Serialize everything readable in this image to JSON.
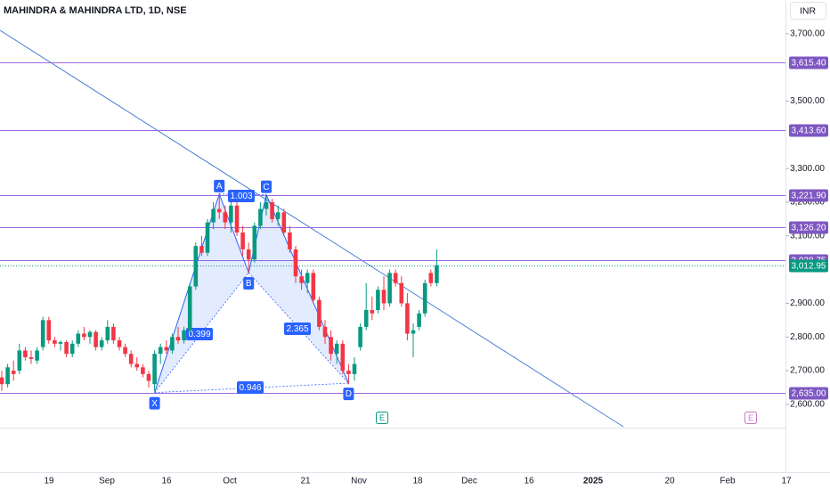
{
  "chart_data": {
    "type": "candlestick",
    "title": "MAHINDRA & MAHINDRA LTD, 1D, NSE",
    "currency": "INR",
    "open": [
      2680,
      2660,
      2700,
      2700,
      2760,
      2740,
      2730,
      2770,
      2850,
      2790,
      2780,
      2785,
      2750,
      2780,
      2810,
      2800,
      2815,
      2770,
      2790,
      2830,
      2790,
      2770,
      2750,
      2720,
      2710,
      2690,
      2660,
      2750,
      2770,
      2760,
      2800,
      2790,
      2820,
      2950,
      3070,
      3050,
      3140,
      3180,
      3170,
      3140,
      3190,
      3110,
      3060,
      3030,
      3130,
      3180,
      3200,
      3150,
      3170,
      3110,
      3060,
      2980,
      2960,
      2990,
      2910,
      2830,
      2800,
      2750,
      2780,
      2700,
      2690,
      2770,
      2830,
      2880,
      2880,
      2940,
      2900,
      2990,
      2960,
      2900,
      2810,
      2830,
      2870,
      2990,
      2960
    ],
    "high": [
      2700,
      2720,
      2730,
      2780,
      2770,
      2760,
      2770,
      2860,
      2860,
      2800,
      2790,
      2790,
      2790,
      2820,
      2830,
      2820,
      2820,
      2800,
      2850,
      2840,
      2800,
      2780,
      2760,
      2740,
      2720,
      2700,
      2760,
      2780,
      2790,
      2810,
      2830,
      2830,
      2960,
      3080,
      3100,
      3150,
      3200,
      3225,
      3190,
      3200,
      3200,
      3130,
      3080,
      3140,
      3200,
      3220,
      3210,
      3190,
      3180,
      3130,
      3070,
      3000,
      3000,
      3000,
      2920,
      2850,
      2820,
      2790,
      2790,
      2720,
      2740,
      2840,
      2960,
      2920,
      2950,
      2980,
      3000,
      3000,
      2980,
      2930,
      2840,
      2880,
      2970,
      3000,
      3060
    ],
    "low": [
      2640,
      2650,
      2670,
      2690,
      2730,
      2720,
      2720,
      2760,
      2780,
      2770,
      2760,
      2740,
      2740,
      2770,
      2790,
      2780,
      2760,
      2760,
      2780,
      2780,
      2760,
      2740,
      2710,
      2700,
      2680,
      2650,
      2640,
      2720,
      2750,
      2750,
      2780,
      2780,
      2810,
      2940,
      3040,
      3040,
      3120,
      3150,
      3120,
      3110,
      3100,
      3040,
      2990,
      3020,
      3120,
      3160,
      3140,
      3130,
      3100,
      3050,
      2960,
      2940,
      2930,
      2900,
      2820,
      2780,
      2730,
      2720,
      2690,
      2660,
      2670,
      2760,
      2820,
      2850,
      2870,
      2880,
      2890,
      2950,
      2890,
      2790,
      2740,
      2820,
      2860,
      2950,
      2950
    ],
    "close": [
      2660,
      2710,
      2690,
      2760,
      2740,
      2735,
      2760,
      2850,
      2790,
      2780,
      2785,
      2750,
      2780,
      2810,
      2800,
      2815,
      2770,
      2790,
      2830,
      2790,
      2770,
      2750,
      2720,
      2710,
      2690,
      2670,
      2750,
      2770,
      2760,
      2800,
      2790,
      2820,
      2950,
      3070,
      3050,
      3140,
      3180,
      3170,
      3140,
      3190,
      3110,
      3060,
      3030,
      3130,
      3180,
      3200,
      3150,
      3170,
      3110,
      3060,
      2980,
      2960,
      2990,
      2910,
      2830,
      2800,
      2750,
      2780,
      2700,
      2690,
      2720,
      2830,
      2880,
      2870,
      2940,
      2900,
      2990,
      2960,
      2900,
      2810,
      2820,
      2870,
      2960,
      2960,
      3012.95
    ],
    "up_color": "#089981",
    "down_color": "#f23645",
    "ylim": [
      2531,
      3800
    ],
    "yticks": [
      {
        "value": 3700,
        "label": "3,700.00"
      },
      {
        "value": 3500,
        "label": "3,500.00"
      },
      {
        "value": 3300,
        "label": "3,300.00"
      },
      {
        "value": 3200,
        "label": "3,200.00"
      },
      {
        "value": 3100,
        "label": "3,100.00"
      },
      {
        "value": 2900,
        "label": "2,900.00"
      },
      {
        "value": 2800,
        "label": "2,800.00"
      },
      {
        "value": 2700,
        "label": "2,700.00"
      },
      {
        "value": 2600,
        "label": "2,600.00"
      }
    ],
    "levels": [
      {
        "value": 3615.4,
        "label": "3,615.40"
      },
      {
        "value": 3413.6,
        "label": "3,413.60"
      },
      {
        "value": 3221.9,
        "label": "3,221.90"
      },
      {
        "value": 3126.2,
        "label": "3,126.20"
      },
      {
        "value": 3028.75,
        "label": "3,028.75"
      },
      {
        "value": 2635,
        "label": "2,635.00"
      }
    ],
    "level_color": "#9c6ade",
    "last_price": {
      "value": 3012.95,
      "label": "3,012.95"
    },
    "x_labels": [
      "19",
      "Sep",
      "16",
      "Oct",
      "21",
      "Nov",
      "18",
      "Dec",
      "16",
      "2025",
      "20",
      "Feb",
      "17"
    ],
    "pattern": {
      "points": [
        {
          "label": "X",
          "value": 2635
        },
        {
          "label": "A",
          "value": 3224
        },
        {
          "label": "B",
          "value": 2991
        },
        {
          "label": "C",
          "value": 3222
        },
        {
          "label": "D",
          "value": 2663
        }
      ],
      "ratios": [
        0.399,
        1.003,
        2.365,
        0.946
      ],
      "color": "#2962ff"
    },
    "earnings_markers": [
      "E",
      "E"
    ]
  }
}
